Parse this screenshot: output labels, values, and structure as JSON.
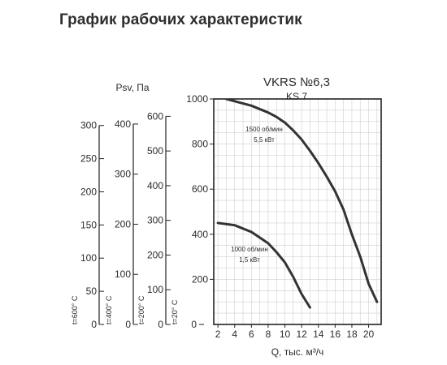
{
  "page": {
    "title": "График рабочих характеристик"
  },
  "chart_data": {
    "type": "line",
    "title": "VKRS №6,3",
    "subtitle": "KS 7",
    "xlabel": "Q, тыс. м³/ч",
    "xlim": [
      1.5,
      21.5
    ],
    "x_ticks": [
      2,
      4,
      6,
      8,
      10,
      12,
      14,
      16,
      18,
      20
    ],
    "ylim": [
      0,
      1000
    ],
    "y_ticks": [
      200,
      400,
      600,
      800,
      1000
    ],
    "grid": true,
    "ylabel": "Psv, Па",
    "temperature_axes": [
      {
        "label": "t=600° C",
        "max": 340,
        "ticks": [
          0,
          50,
          100,
          150,
          200,
          250,
          300
        ]
      },
      {
        "label": "t=400° C",
        "max": 450,
        "ticks": [
          0,
          100,
          200,
          300,
          400
        ]
      },
      {
        "label": "t=200° C",
        "max": 650,
        "ticks": [
          0,
          100,
          200,
          300,
          400,
          500,
          600
        ]
      },
      {
        "label": "t=20° C",
        "max": 1000,
        "ticks": [
          0
        ]
      }
    ],
    "series": [
      {
        "name": "1500 об/мин",
        "power": "5,5 кВт",
        "color": "#333333",
        "x": [
          3.0,
          4.0,
          6.0,
          8.0,
          9.0,
          10.0,
          11.0,
          12.0,
          13.0,
          14.0,
          15.0,
          16.0,
          17.0,
          18.0,
          19.0,
          20.0,
          21.0
        ],
        "y": [
          1000,
          990,
          970,
          940,
          920,
          895,
          860,
          820,
          770,
          715,
          655,
          590,
          510,
          400,
          300,
          180,
          100
        ]
      },
      {
        "name": "1000 об/мин",
        "power": "1,5 кВт",
        "color": "#333333",
        "x": [
          2.0,
          4.0,
          6.0,
          8.0,
          9.0,
          10.0,
          11.0,
          12.0,
          13.0
        ],
        "y": [
          450,
          440,
          410,
          360,
          320,
          275,
          210,
          135,
          75
        ]
      }
    ]
  }
}
